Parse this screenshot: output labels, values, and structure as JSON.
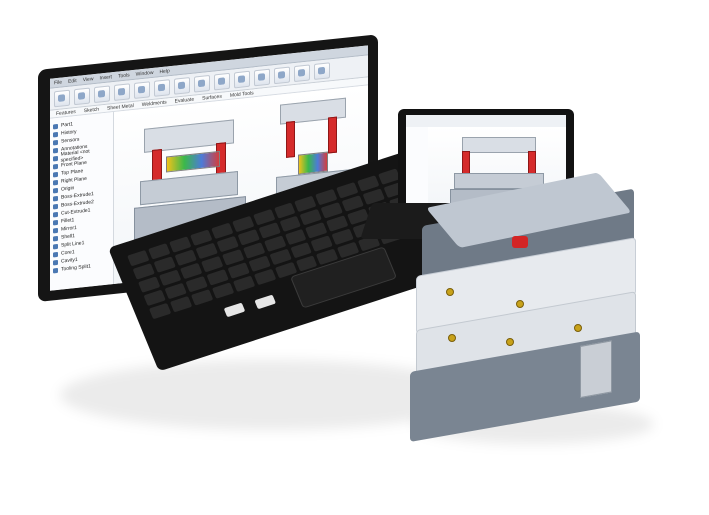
{
  "cad_app": {
    "menu_items": [
      "File",
      "Edit",
      "View",
      "Insert",
      "Tools",
      "Window",
      "Help"
    ],
    "tabs": [
      "Features",
      "Sketch",
      "Sheet Metal",
      "Weldments",
      "Evaluate",
      "Surfaces",
      "Mold Tools"
    ],
    "tree_items": [
      "Part1",
      "History",
      "Sensors",
      "Annotations",
      "Material <not specified>",
      "Front Plane",
      "Top Plane",
      "Right Plane",
      "Origin",
      "Boss-Extrude1",
      "Boss-Extrude2",
      "Cut-Extrude1",
      "Fillet1",
      "Mirror1",
      "Shell1",
      "Split Line1",
      "Core1",
      "Cavity1",
      "Tooling Split1"
    ]
  },
  "colors": {
    "accent_red": "#d32525",
    "cad_blue": "#4a78b3",
    "mold_gray": "#7a8592"
  }
}
